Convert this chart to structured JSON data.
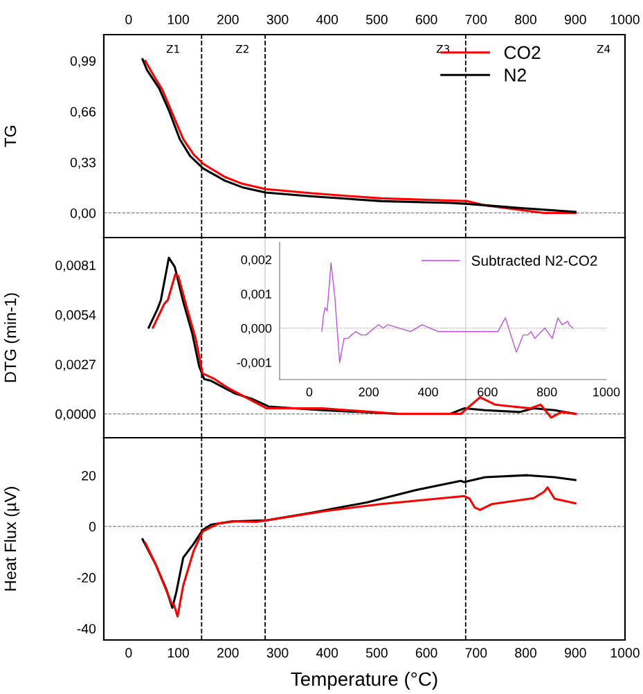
{
  "chart_data": [
    {
      "type": "line",
      "ylabel": "TG",
      "legend": "top right",
      "xlim": [
        -50,
        1000
      ],
      "xticks": [
        0,
        100,
        200,
        300,
        400,
        500,
        600,
        700,
        800,
        900,
        1000
      ],
      "ylim": [
        -0.16,
        1.16
      ],
      "yticks": [
        {
          "value": 0.0,
          "label": "0,00"
        },
        {
          "value": 0.33,
          "label": "0,33"
        },
        {
          "value": 0.66,
          "label": "0,66"
        },
        {
          "value": 0.99,
          "label": "0,99"
        }
      ],
      "series": [
        {
          "name": "CO2",
          "color": "#ff0000",
          "x": [
            33.5,
            47.5,
            68,
            89,
            110,
            131,
            150,
            194,
            229,
            276,
            369,
            509,
            648,
            683,
            718,
            788,
            837,
            900
          ],
          "values": [
            0.99,
            0.91,
            0.8,
            0.64,
            0.48,
            0.38,
            0.32,
            0.234,
            0.19,
            0.155,
            0.128,
            0.095,
            0.081,
            0.077,
            0.05,
            0.02,
            0.0,
            0.0
          ]
        },
        {
          "name": "N2",
          "color": "#000000",
          "x": [
            28,
            37,
            61.5,
            82,
            103,
            124,
            150,
            194,
            229,
            276,
            369,
            509,
            648,
            683,
            788,
            900
          ],
          "values": [
            1.0,
            0.93,
            0.81,
            0.66,
            0.48,
            0.37,
            0.29,
            0.21,
            0.167,
            0.133,
            0.108,
            0.077,
            0.065,
            0.059,
            0.032,
            0.007
          ]
        }
      ],
      "ref_lines": [
        {
          "axis": "y",
          "value": 0,
          "color": "#808080",
          "line_style": "dashed"
        },
        {
          "axis": "x",
          "value": 147,
          "color": "#000000",
          "line_style": "dashed"
        },
        {
          "axis": "x",
          "value": 275,
          "color": "#000000",
          "line_style": "dashed"
        },
        {
          "axis": "x",
          "value": 679,
          "color": "#000000",
          "line_style": "dashed"
        }
      ],
      "annotations": [
        "Z1",
        "Z2",
        "Z3",
        "Z4"
      ]
    },
    {
      "type": "line",
      "ylabel": "DTG (min-1)",
      "tick_labels": "y",
      "xlim": [
        -50,
        1000
      ],
      "ylim": [
        -0.0013,
        0.0096
      ],
      "yticks": [
        {
          "value": 0.0,
          "label": "0,0000"
        },
        {
          "value": 0.0027,
          "label": "0,0027"
        },
        {
          "value": 0.0054,
          "label": "0,0054"
        },
        {
          "value": 0.0081,
          "label": "0,0081"
        }
      ],
      "series": [
        {
          "color": "#000000",
          "x": [
            40.5,
            58,
            65,
            81,
            93,
            110,
            128,
            142,
            152,
            166,
            215,
            250,
            282,
            390,
            544,
            648,
            676,
            718,
            788,
            816,
            858,
            900
          ],
          "values": [
            0.0047,
            0.0057,
            0.0062,
            0.0085,
            0.008,
            0.0061,
            0.0044,
            0.0026,
            0.0019,
            0.0018,
            0.0011,
            0.0008,
            0.0004,
            0.0002,
            0.0,
            0.0,
            0.0003,
            0.0002,
            0.0001,
            0.0003,
            0.0002,
            0.0
          ]
        },
        {
          "color": "#ff0000",
          "x": [
            49,
            72,
            79,
            94,
            100,
            117,
            135,
            149,
            173,
            201,
            243,
            278,
            390,
            544,
            648,
            669,
            708,
            739,
            774,
            809,
            830,
            851,
            872,
            900
          ],
          "values": [
            0.0047,
            0.006,
            0.0062,
            0.0076,
            0.0075,
            0.0058,
            0.0041,
            0.0022,
            0.0019,
            0.0014,
            0.0008,
            0.0003,
            0.0003,
            0.0,
            0.0,
            0.0,
            0.0009,
            0.0005,
            0.0004,
            0.0003,
            0.0005,
            -0.0002,
            0.0001,
            0.0
          ]
        }
      ],
      "ref_lines": [
        {
          "axis": "y",
          "value": 0,
          "color": "#808080",
          "line_style": "dashed"
        },
        {
          "axis": "x",
          "value": 147,
          "color": "#000000",
          "line_style": "dashed"
        },
        {
          "axis": "x",
          "value": 275,
          "color": "#d9d9d9",
          "line_style": "solid"
        },
        {
          "axis": "x",
          "value": 679,
          "color": "#d9d9d9",
          "line_style": "solid"
        }
      ]
    },
    {
      "type": "line",
      "legend": "top right",
      "xlim": [
        -100,
        1000
      ],
      "xticks": [
        0,
        200,
        400,
        600,
        800,
        1000
      ],
      "ylim": [
        -0.0015,
        0.0025
      ],
      "yticks": [
        {
          "value": -0.001,
          "label": "-0,001"
        },
        {
          "value": 0.0,
          "label": "0,000"
        },
        {
          "value": 0.001,
          "label": "0,001"
        },
        {
          "value": 0.002,
          "label": "0,002"
        }
      ],
      "series": [
        {
          "name": "Subtracted N2-CO2",
          "color": "#bf4fe8",
          "x": [
            42,
            48,
            53,
            60,
            73,
            86,
            102,
            117,
            129,
            156,
            175,
            191,
            233,
            249,
            264,
            341,
            380,
            434,
            550,
            627,
            635,
            660,
            697,
            720,
            735,
            747,
            759,
            793,
            818,
            837,
            851,
            870,
            874,
            888
          ],
          "values": [
            -0.0001,
            0.0004,
            0.0006,
            0.0005,
            0.0019,
            0.0009,
            -0.001,
            -0.0003,
            -0.0003,
            -0.0001,
            -0.0002,
            -0.0002,
            0.0001,
            0.0,
            0.0001,
            -0.0001,
            0.0001,
            -0.0001,
            -0.0001,
            -0.0001,
            -0.0001,
            0.0003,
            -0.0007,
            -0.0002,
            -0.0002,
            -0.0001,
            -0.0003,
            0.0,
            -0.0003,
            0.0003,
            0.0001,
            0.0002,
            0.0001,
            0.0
          ]
        }
      ],
      "ref_lines": [
        {
          "axis": "y",
          "value": 0,
          "color": "#b0b0b0",
          "line_style": "dotted"
        }
      ]
    },
    {
      "type": "line",
      "ylabel": "Heat Flux (µV)",
      "xlabel": "Temperature (°C)",
      "xlim": [
        -50,
        1000
      ],
      "xticks": [
        0,
        100,
        200,
        300,
        400,
        500,
        600,
        700,
        800,
        900,
        1000
      ],
      "ylim": [
        -44.5,
        34.8
      ],
      "yticks": [
        -40,
        -20,
        0,
        20
      ],
      "series": [
        {
          "color": "#000000",
          "x": [
            28,
            54.5,
            75.5,
            88,
            96,
            110,
            131,
            149,
            166,
            208,
            278,
            369,
            481,
            579,
            669,
            676,
            718,
            802,
            858,
            900
          ],
          "values": [
            -5.0,
            -14.9,
            -24.4,
            -31.9,
            -25.8,
            -12.2,
            -6.8,
            -1.4,
            0.7,
            2.0,
            2.4,
            5.4,
            9.5,
            14.3,
            17.9,
            17.4,
            19.3,
            20.1,
            19.3,
            18.2
          ]
        },
        {
          "color": "#ff0000",
          "x": [
            33.5,
            54.5,
            86,
            91.5,
            98.5,
            110,
            131,
            149,
            180,
            215,
            257,
            278,
            397,
            509,
            676,
            687,
            697,
            708,
            732,
            816,
            837,
            844,
            858,
            900
          ],
          "values": [
            -6.4,
            -14.9,
            -29.9,
            -30.8,
            -35.3,
            -23.1,
            -9.5,
            -2.0,
            1.1,
            2.0,
            1.8,
            2.4,
            6.1,
            8.8,
            11.9,
            10.9,
            7.5,
            6.5,
            8.8,
            11.1,
            13.6,
            15.3,
            10.9,
            9.1
          ]
        }
      ],
      "ref_lines": [
        {
          "axis": "y",
          "value": 0,
          "color": "#808080",
          "line_style": "dashed"
        },
        {
          "axis": "x",
          "value": 147,
          "color": "#000000",
          "line_style": "dashed"
        },
        {
          "axis": "x",
          "value": 275,
          "color": "#000000",
          "line_style": "dashed"
        },
        {
          "axis": "x",
          "value": 679,
          "color": "#000000",
          "line_style": "dashed"
        }
      ]
    }
  ]
}
